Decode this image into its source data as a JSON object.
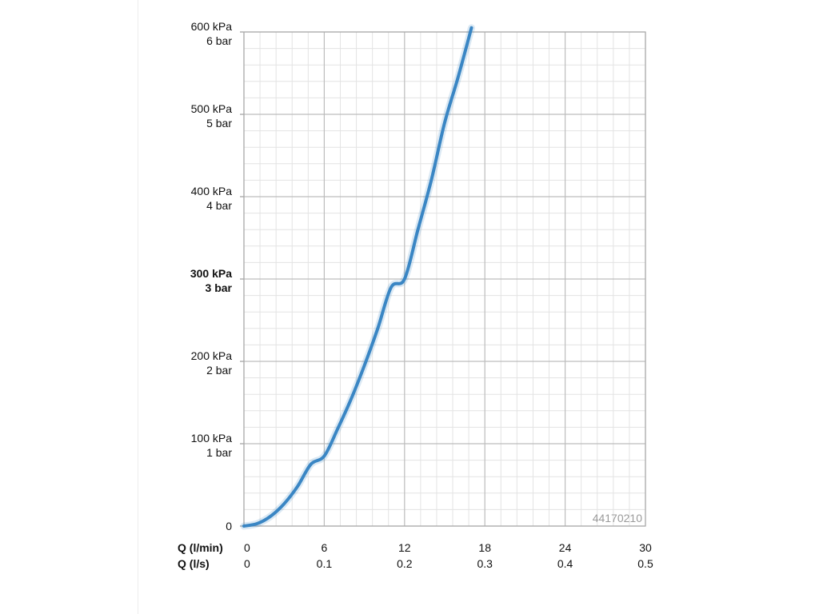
{
  "chart_data": {
    "type": "line",
    "x_axes": [
      {
        "label": "Q (l/min)",
        "ticks": [
          "0",
          "6",
          "12",
          "18",
          "24",
          "30"
        ]
      },
      {
        "label": "Q (l/s)",
        "ticks": [
          "0",
          "0.1",
          "0.2",
          "0.3",
          "0.4",
          "0.5"
        ]
      }
    ],
    "y_ticks": [
      {
        "value": 0,
        "lines": [
          "0"
        ]
      },
      {
        "value": 100,
        "lines": [
          "100 kPa",
          "1 bar"
        ]
      },
      {
        "value": 200,
        "lines": [
          "200 kPa",
          "2 bar"
        ]
      },
      {
        "value": 300,
        "lines": [
          "300 kPa",
          "3 bar"
        ],
        "bold": true
      },
      {
        "value": 400,
        "lines": [
          "400 kPa",
          "4 bar"
        ]
      },
      {
        "value": 500,
        "lines": [
          "500 kPa",
          "5 bar"
        ]
      },
      {
        "value": 600,
        "lines": [
          "600 kPa",
          "6 bar"
        ]
      }
    ],
    "xlim": [
      0,
      30
    ],
    "ylim": [
      0,
      600
    ],
    "grid": true,
    "minor_divisions": 5,
    "series": [
      {
        "color": "#3a86c4",
        "x": [
          0,
          1,
          2,
          3,
          4,
          5,
          6,
          7,
          8,
          9,
          10,
          11,
          12,
          13,
          14,
          15,
          16,
          17
        ],
        "y": [
          0,
          3,
          12,
          27,
          48,
          75,
          85,
          118,
          154,
          195,
          240,
          290,
          300,
          360,
          420,
          490,
          545,
          605
        ]
      }
    ],
    "annotation": "44170210"
  }
}
